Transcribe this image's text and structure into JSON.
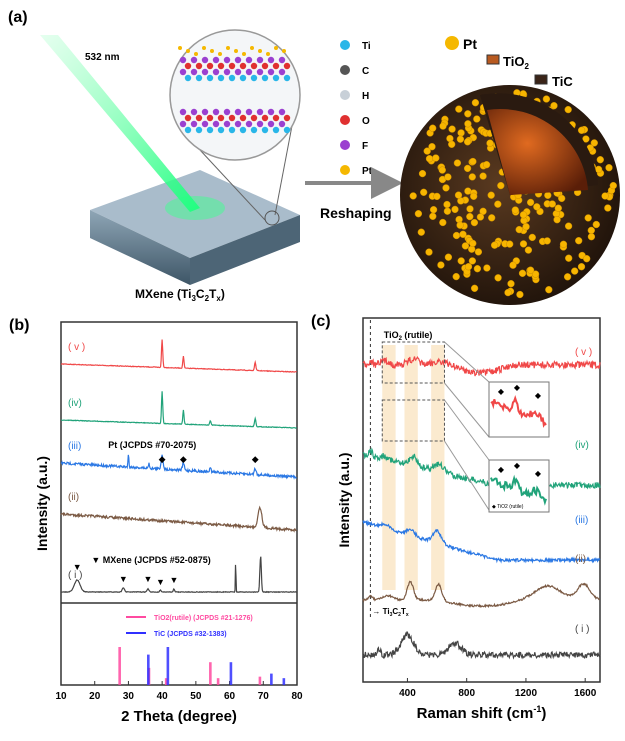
{
  "panel_a": {
    "label": "(a)",
    "laser_label": "532 nm",
    "mxene_label": "MXene (Ti",
    "mxene_sub1": "3",
    "mxene_mid": "C",
    "mxene_sub2": "2",
    "mxene_mid2": "T",
    "mxene_sub3": "x",
    "mxene_end": ")",
    "arrow_label": "Reshaping",
    "legend": [
      {
        "label": "Ti",
        "color": "#29b6e8"
      },
      {
        "label": "C",
        "color": "#555555"
      },
      {
        "label": "H",
        "color": "#c8d0d8"
      },
      {
        "label": "O",
        "color": "#e03030"
      },
      {
        "label": "F",
        "color": "#9b40d0"
      },
      {
        "label": "Pt",
        "color": "#f5b800"
      }
    ],
    "sphere_labels": {
      "pt": "Pt",
      "tio2": "TiO",
      "tio2_sub": "2",
      "tic": "TiC"
    }
  },
  "chart_data": [
    {
      "type": "line",
      "panel_label": "(b)",
      "xlabel": "2 Theta (degree)",
      "ylabel": "Intensity (a.u.)",
      "xlim": [
        10,
        80
      ],
      "xticks": [
        10,
        20,
        30,
        40,
        50,
        60,
        70,
        80
      ],
      "series": [
        {
          "name": "( v )",
          "color": "#f04848",
          "peaks": [
            40,
            46.3,
            67.6
          ]
        },
        {
          "name": "(iv)",
          "color": "#21a37a",
          "peaks": [
            40,
            46.3,
            54.3,
            67.6
          ]
        },
        {
          "name": "(iii)",
          "color": "#2b78e4",
          "peaks": [
            30,
            36.1,
            40,
            46.3,
            54.3,
            67.6
          ]
        },
        {
          "name": "(ii)",
          "color": "#7b5a44",
          "peaks": [
            69
          ]
        },
        {
          "name": "( i )",
          "color": "#444444",
          "peaks": [
            14.8,
            28.5,
            35.8,
            39.5,
            43.5,
            61.8,
            69.2
          ]
        }
      ],
      "annotations": {
        "pt": "Pt (JCPDS #70-2075)",
        "mxene": "MXene (JCPDS #52-0875)"
      },
      "reference": [
        {
          "name": "TiO2(rutile) (JCPDS #21-1276)",
          "color": "#ff4aa0",
          "sticks": [
            [
              27.4,
              100
            ],
            [
              36.1,
              45
            ],
            [
              41.2,
              18
            ],
            [
              54.3,
              60
            ],
            [
              56.6,
              18
            ],
            [
              69.0,
              22
            ]
          ]
        },
        {
          "name": "TiC (JCPDS #32-1383)",
          "color": "#3030ff",
          "sticks": [
            [
              35.9,
              80
            ],
            [
              41.7,
              100
            ],
            [
              60.4,
              60
            ],
            [
              72.4,
              30
            ],
            [
              76.1,
              18
            ]
          ]
        }
      ]
    },
    {
      "type": "line",
      "panel_label": "(c)",
      "xlabel": "Raman shift (cm",
      "xlabel_sup": "-1",
      "xlabel_end": ")",
      "ylabel": "Intensity (a.u.)",
      "xlim": [
        100,
        1700
      ],
      "xticks": [
        400,
        800,
        1200,
        1600
      ],
      "series": [
        {
          "name": "( v )",
          "color": "#f04848",
          "peaks": [
            150,
            250,
            440,
            610
          ]
        },
        {
          "name": "(iv)",
          "color": "#21a37a",
          "peaks": [
            150,
            250,
            440,
            610
          ]
        },
        {
          "name": "(iii)",
          "color": "#2b78e4",
          "peaks": [
            250,
            420,
            600
          ]
        },
        {
          "name": "(ii)",
          "color": "#7b5a44",
          "peaks": [
            150,
            270,
            420,
            610,
            1350,
            1590
          ]
        },
        {
          "name": "( i )",
          "color": "#444444",
          "peaks": [
            210,
            400,
            720
          ]
        }
      ],
      "annotations": {
        "box": "TiO",
        "box_sub": "2",
        "box_end": " (rutile)",
        "mxene": "Ti",
        "inset_legend": "TiO2 (rutile)"
      },
      "highlight_bands": [
        [
          230,
          320
        ],
        [
          380,
          470
        ],
        [
          560,
          650
        ]
      ],
      "dashed_line_x": 150
    }
  ]
}
